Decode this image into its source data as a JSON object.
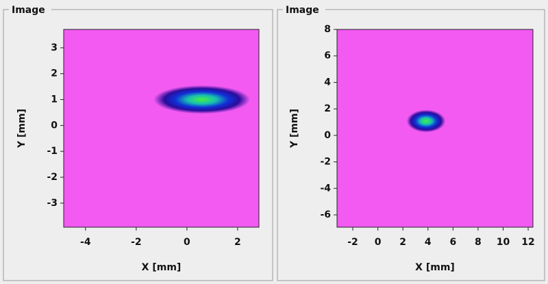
{
  "chart_data": [
    {
      "type": "image",
      "panel_title": "Image",
      "xlabel": "X [mm]",
      "ylabel": "Y [mm]",
      "xlim": [
        -4.86,
        2.84
      ],
      "ylim": [
        -3.93,
        3.71
      ],
      "xticks": [
        -4,
        -2,
        0,
        2
      ],
      "yticks": [
        -3,
        -2,
        -1,
        0,
        1,
        2,
        3
      ],
      "background": "#f25af2",
      "colormap": [
        "#44f044",
        "#18c0b0",
        "#1030d8",
        "#2a0c9c"
      ],
      "spot": {
        "x": 0.59,
        "y": 1.0,
        "rx": 1.9,
        "ry": 0.55
      }
    },
    {
      "type": "image",
      "panel_title": "Image",
      "xlabel": "X [mm]",
      "ylabel": "Y [mm]",
      "xlim": [
        -3.26,
        12.38
      ],
      "ylim": [
        -6.93,
        8
      ],
      "xticks": [
        -2,
        0,
        2,
        4,
        6,
        8,
        10,
        12
      ],
      "yticks": [
        -6,
        -4,
        -2,
        0,
        2,
        4,
        6,
        8
      ],
      "background": "#f25af2",
      "colormap": [
        "#44f044",
        "#18c0b0",
        "#1030d8",
        "#2a0c9c"
      ],
      "spot": {
        "x": 3.85,
        "y": 1.08,
        "rx": 1.55,
        "ry": 0.85
      }
    }
  ]
}
